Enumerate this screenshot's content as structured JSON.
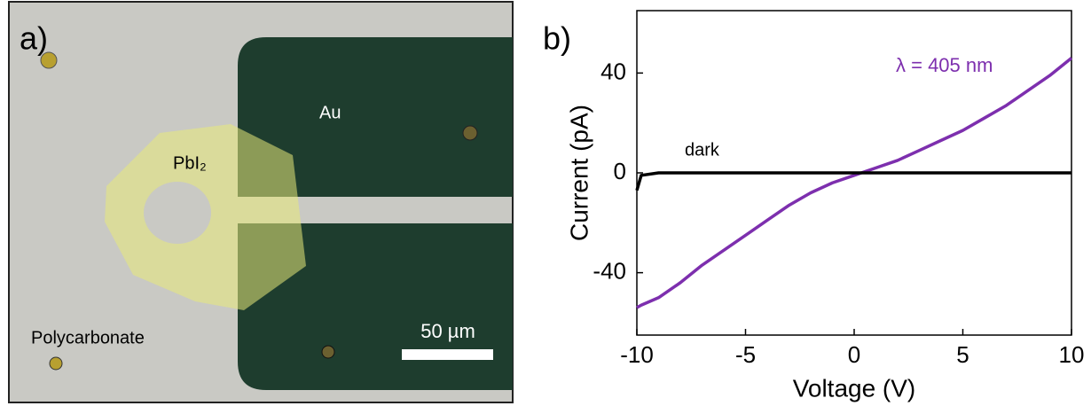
{
  "panel_a": {
    "label": "a)",
    "au_label": "Au",
    "pbi2_label": "PbI₂",
    "substrate_label": "Polycarbonate",
    "scale_bar_label": "50 µm"
  },
  "chart_data": {
    "type": "line",
    "panel_label": "b)",
    "x_label": "Voltage (V)",
    "y_label": "Current (pA)",
    "x": [
      -10,
      -9.8,
      -9,
      -8,
      -7,
      -6,
      -5,
      -4,
      -3,
      -2,
      -1,
      0,
      1,
      2,
      3,
      4,
      5,
      6,
      7,
      8,
      9,
      10
    ],
    "series": [
      {
        "name": "λ = 405 nm",
        "color": "#7d2fae",
        "values": [
          -54,
          -53,
          -50,
          -44,
          -37,
          -31,
          -25,
          -19,
          -13,
          -8,
          -4,
          -1,
          2,
          5,
          9,
          13,
          17,
          22,
          27,
          33,
          39,
          46
        ]
      },
      {
        "name": "dark",
        "color": "#000000",
        "values": [
          -7,
          -1,
          0,
          0,
          0,
          0,
          0,
          0,
          0,
          0,
          0,
          0,
          0,
          0,
          0,
          0,
          0,
          0,
          0,
          0,
          0,
          0
        ]
      }
    ],
    "xlim": [
      -10,
      10
    ],
    "ylim": [
      -65,
      65
    ],
    "xticks": [
      -10,
      -5,
      0,
      5,
      10
    ],
    "yticks": [
      -40,
      0,
      40
    ]
  }
}
